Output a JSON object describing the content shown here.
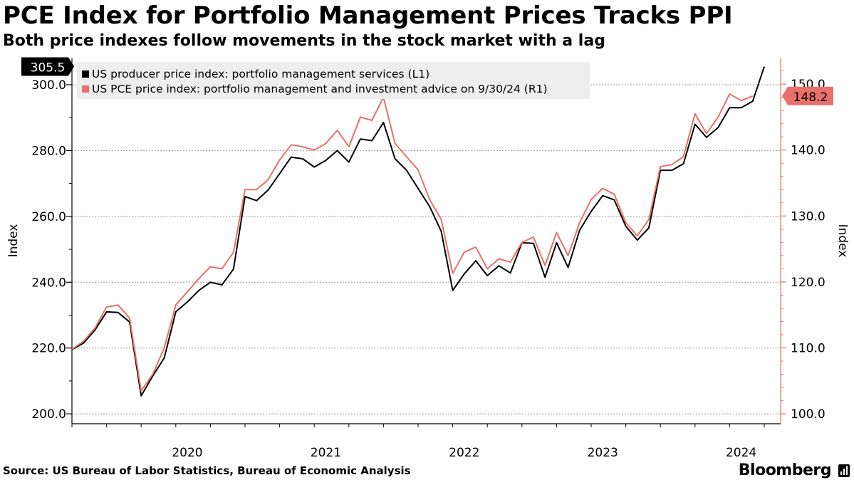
{
  "title": "PCE Index for Portfolio Management Prices Tracks PPI",
  "subtitle": "Both price indexes follow movements in the stock market with a lag",
  "source": "Source: US Bureau of Labor Statistics, Bureau of Economic Analysis",
  "brand": "Bloomberg",
  "chart_data": {
    "type": "line",
    "x_start": "2019-09",
    "x_ticks": [
      "2020",
      "2021",
      "2022",
      "2023",
      "2024"
    ],
    "ylabel_left": "Index",
    "ylabel_right": "Index",
    "ylim_left": [
      197,
      308
    ],
    "ylim_right": [
      98.5,
      153.9
    ],
    "yticks_left": [
      "200.0",
      "220.0",
      "240.0",
      "260.0",
      "280.0",
      "300.0"
    ],
    "yticks_right": [
      "100.0",
      "110.0",
      "120.0",
      "130.0",
      "140.0",
      "150.0"
    ],
    "series": [
      {
        "name": "US producer price index: portfolio management services (L1)",
        "axis": "left",
        "color": "#000000",
        "last_label": "305.5",
        "values": [
          219.5,
          221.5,
          225.5,
          231.0,
          230.8,
          227.9,
          205.5,
          211.5,
          217.0,
          231.0,
          234.0,
          237.5,
          240.0,
          239.2,
          244.0,
          266.0,
          264.8,
          268.0,
          273.0,
          278.0,
          277.5,
          275.0,
          277.0,
          280.0,
          276.5,
          283.5,
          283.0,
          288.5,
          277.5,
          274.0,
          268.5,
          263.0,
          255.5,
          237.5,
          242.5,
          246.5,
          242.0,
          245.0,
          242.8,
          252.0,
          251.8,
          241.5,
          252.0,
          244.5,
          255.8,
          261.5,
          266.3,
          265.0,
          257.0,
          252.8,
          256.5,
          274.0,
          274.0,
          276.0,
          288.0,
          284.0,
          287.0,
          293.0,
          293.0,
          295.0,
          305.5
        ]
      },
      {
        "name": "US PCE price index: portfolio management and investment advice on 9/30/24 (R1)",
        "axis": "right",
        "color": "#E8706A",
        "last_label": "148.2",
        "values": [
          109.8,
          111.0,
          113.0,
          116.2,
          116.5,
          114.5,
          103.5,
          106.0,
          110.0,
          116.5,
          118.5,
          120.5,
          122.3,
          122.0,
          124.5,
          134.0,
          134.0,
          135.5,
          138.5,
          140.8,
          140.5,
          140.0,
          141.0,
          143.0,
          140.5,
          145.0,
          144.5,
          148.0,
          141.0,
          139.0,
          137.0,
          132.5,
          129.5,
          121.3,
          124.5,
          125.3,
          122.0,
          123.5,
          123.0,
          126.0,
          126.8,
          122.5,
          127.5,
          124.0,
          129.0,
          132.5,
          134.2,
          133.3,
          129.0,
          127.0,
          129.5,
          137.5,
          137.8,
          139.0,
          145.5,
          142.5,
          145.0,
          148.5,
          147.5,
          148.2
        ]
      }
    ]
  }
}
